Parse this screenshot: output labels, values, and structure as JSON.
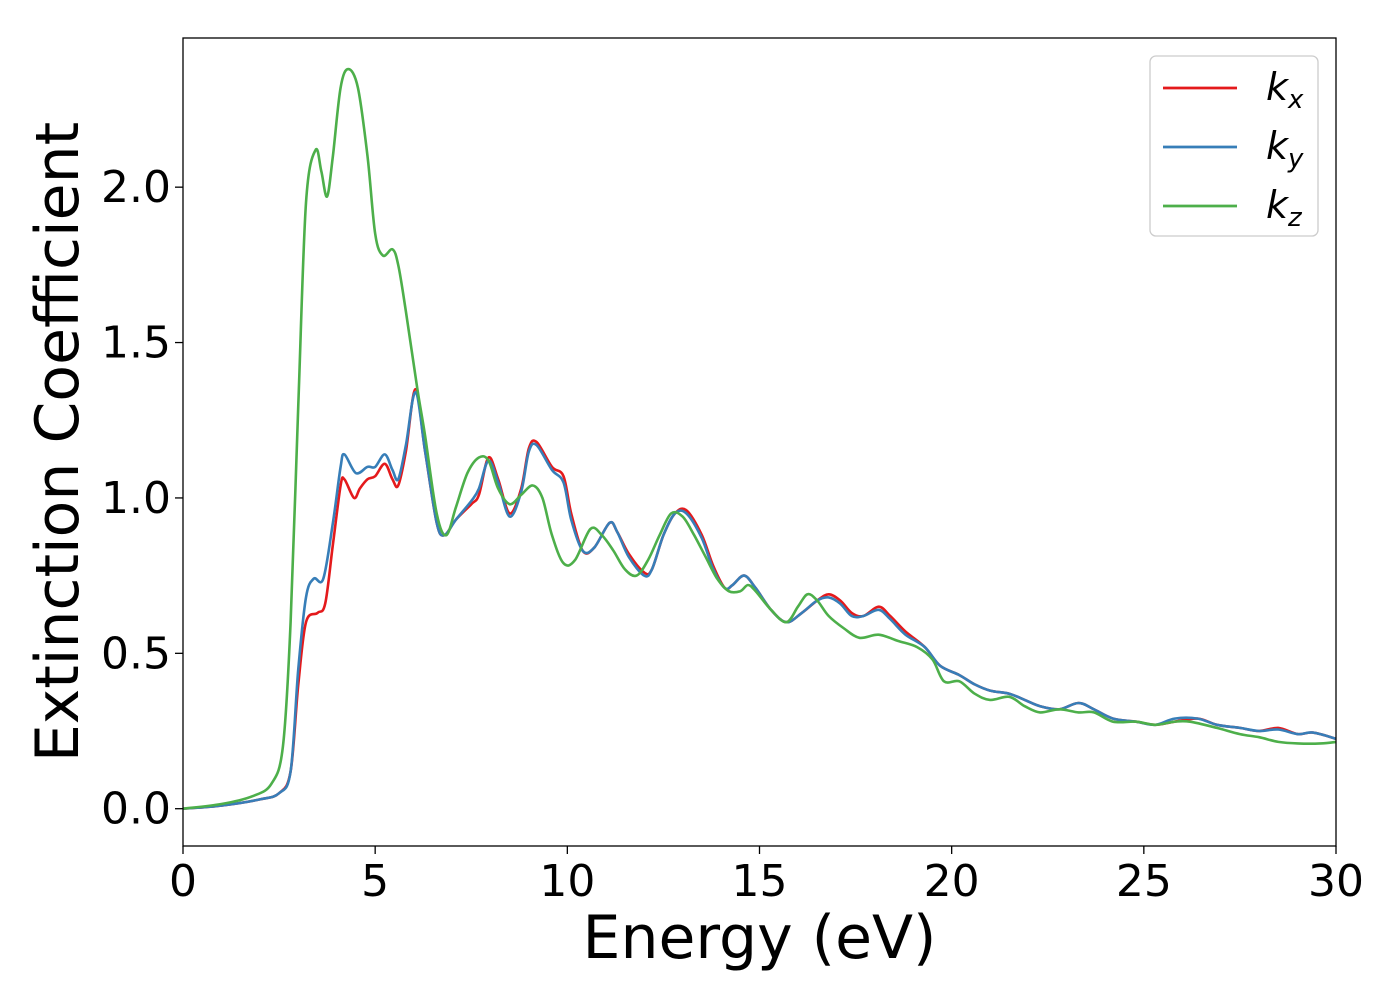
{
  "chart_data": {
    "type": "line",
    "xlabel": "Energy (eV)",
    "ylabel": "Extinction Coefficient",
    "xlim": [
      0,
      30
    ],
    "ylim": [
      -0.12,
      2.48
    ],
    "xticks": [
      0,
      5,
      10,
      15,
      20,
      25,
      30
    ],
    "yticks": [
      0.0,
      0.5,
      1.0,
      1.5,
      2.0
    ],
    "xtick_labels": [
      "0",
      "5",
      "10",
      "15",
      "20",
      "25",
      "30"
    ],
    "ytick_labels": [
      "0.0",
      "0.5",
      "1.0",
      "1.5",
      "2.0"
    ],
    "grid": false,
    "legend_position": "top-right",
    "series": [
      {
        "name": "kx",
        "legend": {
          "base": "k",
          "sub": "x"
        },
        "color": "#e41a1c",
        "points": [
          [
            0,
            0.0
          ],
          [
            1,
            0.01
          ],
          [
            2,
            0.03
          ],
          [
            2.5,
            0.05
          ],
          [
            2.8,
            0.12
          ],
          [
            3,
            0.4
          ],
          [
            3.2,
            0.6
          ],
          [
            3.5,
            0.63
          ],
          [
            3.7,
            0.66
          ],
          [
            3.9,
            0.85
          ],
          [
            4.1,
            1.04
          ],
          [
            4.2,
            1.06
          ],
          [
            4.45,
            1.0
          ],
          [
            4.6,
            1.03
          ],
          [
            4.8,
            1.06
          ],
          [
            5.0,
            1.07
          ],
          [
            5.25,
            1.11
          ],
          [
            5.45,
            1.06
          ],
          [
            5.6,
            1.04
          ],
          [
            5.8,
            1.15
          ],
          [
            6.05,
            1.35
          ],
          [
            6.3,
            1.15
          ],
          [
            6.6,
            0.92
          ],
          [
            6.8,
            0.88
          ],
          [
            7.1,
            0.93
          ],
          [
            7.5,
            0.98
          ],
          [
            7.7,
            1.01
          ],
          [
            7.95,
            1.13
          ],
          [
            8.2,
            1.06
          ],
          [
            8.5,
            0.95
          ],
          [
            8.8,
            1.03
          ],
          [
            9.0,
            1.16
          ],
          [
            9.2,
            1.18
          ],
          [
            9.6,
            1.1
          ],
          [
            9.9,
            1.07
          ],
          [
            10.1,
            0.95
          ],
          [
            10.4,
            0.83
          ],
          [
            10.7,
            0.84
          ],
          [
            11.1,
            0.92
          ],
          [
            11.3,
            0.89
          ],
          [
            11.6,
            0.82
          ],
          [
            12.0,
            0.76
          ],
          [
            12.2,
            0.77
          ],
          [
            12.5,
            0.88
          ],
          [
            12.8,
            0.95
          ],
          [
            13.1,
            0.96
          ],
          [
            13.5,
            0.88
          ],
          [
            13.8,
            0.78
          ],
          [
            14.1,
            0.71
          ],
          [
            14.3,
            0.72
          ],
          [
            14.6,
            0.75
          ],
          [
            14.9,
            0.71
          ],
          [
            15.3,
            0.64
          ],
          [
            15.7,
            0.6
          ],
          [
            16.1,
            0.63
          ],
          [
            16.5,
            0.67
          ],
          [
            16.8,
            0.69
          ],
          [
            17.1,
            0.67
          ],
          [
            17.4,
            0.63
          ],
          [
            17.7,
            0.62
          ],
          [
            18.1,
            0.65
          ],
          [
            18.4,
            0.62
          ],
          [
            18.8,
            0.57
          ],
          [
            19.3,
            0.52
          ],
          [
            19.7,
            0.46
          ],
          [
            20.2,
            0.43
          ],
          [
            20.6,
            0.4
          ],
          [
            21.0,
            0.38
          ],
          [
            21.5,
            0.37
          ],
          [
            21.9,
            0.35
          ],
          [
            22.3,
            0.33
          ],
          [
            22.8,
            0.32
          ],
          [
            23.3,
            0.34
          ],
          [
            23.7,
            0.32
          ],
          [
            24.2,
            0.29
          ],
          [
            24.8,
            0.28
          ],
          [
            25.3,
            0.27
          ],
          [
            25.8,
            0.28
          ],
          [
            26.4,
            0.29
          ],
          [
            26.9,
            0.27
          ],
          [
            27.5,
            0.26
          ],
          [
            28.0,
            0.25
          ],
          [
            28.5,
            0.26
          ],
          [
            29.0,
            0.24
          ],
          [
            29.4,
            0.245
          ],
          [
            30,
            0.225
          ]
        ]
      },
      {
        "name": "ky",
        "legend": {
          "base": "k",
          "sub": "y"
        },
        "color": "#377eb8",
        "points": [
          [
            0,
            0.0
          ],
          [
            1,
            0.01
          ],
          [
            2,
            0.03
          ],
          [
            2.5,
            0.05
          ],
          [
            2.8,
            0.12
          ],
          [
            3,
            0.45
          ],
          [
            3.2,
            0.68
          ],
          [
            3.4,
            0.74
          ],
          [
            3.65,
            0.74
          ],
          [
            3.9,
            0.92
          ],
          [
            4.1,
            1.1
          ],
          [
            4.2,
            1.14
          ],
          [
            4.5,
            1.08
          ],
          [
            4.8,
            1.1
          ],
          [
            5.0,
            1.1
          ],
          [
            5.25,
            1.14
          ],
          [
            5.45,
            1.09
          ],
          [
            5.6,
            1.06
          ],
          [
            5.8,
            1.17
          ],
          [
            6.05,
            1.34
          ],
          [
            6.3,
            1.15
          ],
          [
            6.6,
            0.92
          ],
          [
            6.8,
            0.88
          ],
          [
            7.1,
            0.93
          ],
          [
            7.5,
            0.99
          ],
          [
            7.7,
            1.03
          ],
          [
            7.95,
            1.12
          ],
          [
            8.2,
            1.05
          ],
          [
            8.5,
            0.94
          ],
          [
            8.8,
            1.02
          ],
          [
            9.0,
            1.15
          ],
          [
            9.2,
            1.17
          ],
          [
            9.6,
            1.09
          ],
          [
            9.9,
            1.05
          ],
          [
            10.1,
            0.93
          ],
          [
            10.4,
            0.83
          ],
          [
            10.7,
            0.84
          ],
          [
            11.1,
            0.92
          ],
          [
            11.3,
            0.89
          ],
          [
            11.6,
            0.81
          ],
          [
            12.0,
            0.75
          ],
          [
            12.2,
            0.77
          ],
          [
            12.5,
            0.88
          ],
          [
            12.8,
            0.95
          ],
          [
            13.1,
            0.95
          ],
          [
            13.5,
            0.87
          ],
          [
            13.8,
            0.77
          ],
          [
            14.1,
            0.71
          ],
          [
            14.3,
            0.72
          ],
          [
            14.6,
            0.75
          ],
          [
            14.9,
            0.71
          ],
          [
            15.3,
            0.64
          ],
          [
            15.7,
            0.6
          ],
          [
            16.1,
            0.63
          ],
          [
            16.5,
            0.67
          ],
          [
            16.8,
            0.68
          ],
          [
            17.1,
            0.66
          ],
          [
            17.4,
            0.62
          ],
          [
            17.7,
            0.62
          ],
          [
            18.1,
            0.64
          ],
          [
            18.4,
            0.61
          ],
          [
            18.8,
            0.56
          ],
          [
            19.3,
            0.52
          ],
          [
            19.7,
            0.46
          ],
          [
            20.2,
            0.43
          ],
          [
            20.6,
            0.4
          ],
          [
            21.0,
            0.38
          ],
          [
            21.5,
            0.37
          ],
          [
            21.9,
            0.35
          ],
          [
            22.3,
            0.33
          ],
          [
            22.8,
            0.32
          ],
          [
            23.3,
            0.34
          ],
          [
            23.7,
            0.32
          ],
          [
            24.2,
            0.29
          ],
          [
            24.8,
            0.28
          ],
          [
            25.3,
            0.27
          ],
          [
            25.8,
            0.29
          ],
          [
            26.4,
            0.29
          ],
          [
            26.9,
            0.27
          ],
          [
            27.5,
            0.26
          ],
          [
            28.0,
            0.25
          ],
          [
            28.5,
            0.255
          ],
          [
            29.0,
            0.24
          ],
          [
            29.4,
            0.245
          ],
          [
            30,
            0.225
          ]
        ]
      },
      {
        "name": "kz",
        "legend": {
          "base": "k",
          "sub": "z"
        },
        "color": "#4daf4a",
        "points": [
          [
            0,
            0.0
          ],
          [
            1,
            0.015
          ],
          [
            1.8,
            0.04
          ],
          [
            2.3,
            0.08
          ],
          [
            2.6,
            0.2
          ],
          [
            2.8,
            0.6
          ],
          [
            3.0,
            1.3
          ],
          [
            3.2,
            1.95
          ],
          [
            3.45,
            2.12
          ],
          [
            3.6,
            2.05
          ],
          [
            3.75,
            1.97
          ],
          [
            3.9,
            2.1
          ],
          [
            4.1,
            2.32
          ],
          [
            4.3,
            2.38
          ],
          [
            4.55,
            2.32
          ],
          [
            4.8,
            2.1
          ],
          [
            5.0,
            1.85
          ],
          [
            5.2,
            1.78
          ],
          [
            5.45,
            1.8
          ],
          [
            5.6,
            1.75
          ],
          [
            5.8,
            1.6
          ],
          [
            6.1,
            1.35
          ],
          [
            6.3,
            1.2
          ],
          [
            6.6,
            0.95
          ],
          [
            6.85,
            0.88
          ],
          [
            7.1,
            0.97
          ],
          [
            7.4,
            1.08
          ],
          [
            7.7,
            1.13
          ],
          [
            7.95,
            1.12
          ],
          [
            8.2,
            1.03
          ],
          [
            8.5,
            0.98
          ],
          [
            8.8,
            1.01
          ],
          [
            9.1,
            1.04
          ],
          [
            9.35,
            1.0
          ],
          [
            9.6,
            0.88
          ],
          [
            9.9,
            0.79
          ],
          [
            10.2,
            0.8
          ],
          [
            10.6,
            0.9
          ],
          [
            10.9,
            0.88
          ],
          [
            11.2,
            0.83
          ],
          [
            11.5,
            0.77
          ],
          [
            11.8,
            0.75
          ],
          [
            12.1,
            0.8
          ],
          [
            12.4,
            0.88
          ],
          [
            12.7,
            0.95
          ],
          [
            13.0,
            0.94
          ],
          [
            13.3,
            0.88
          ],
          [
            13.6,
            0.81
          ],
          [
            13.9,
            0.74
          ],
          [
            14.2,
            0.7
          ],
          [
            14.5,
            0.7
          ],
          [
            14.7,
            0.72
          ],
          [
            14.9,
            0.7
          ],
          [
            15.3,
            0.64
          ],
          [
            15.7,
            0.6
          ],
          [
            16.0,
            0.65
          ],
          [
            16.25,
            0.69
          ],
          [
            16.5,
            0.67
          ],
          [
            16.8,
            0.62
          ],
          [
            17.2,
            0.58
          ],
          [
            17.6,
            0.55
          ],
          [
            18.1,
            0.56
          ],
          [
            18.6,
            0.54
          ],
          [
            19.1,
            0.52
          ],
          [
            19.5,
            0.48
          ],
          [
            19.8,
            0.41
          ],
          [
            20.2,
            0.41
          ],
          [
            20.6,
            0.37
          ],
          [
            21.0,
            0.35
          ],
          [
            21.5,
            0.36
          ],
          [
            21.9,
            0.33
          ],
          [
            22.3,
            0.31
          ],
          [
            22.8,
            0.32
          ],
          [
            23.3,
            0.31
          ],
          [
            23.7,
            0.31
          ],
          [
            24.2,
            0.28
          ],
          [
            24.8,
            0.28
          ],
          [
            25.3,
            0.27
          ],
          [
            25.8,
            0.28
          ],
          [
            26.2,
            0.28
          ],
          [
            26.9,
            0.26
          ],
          [
            27.5,
            0.24
          ],
          [
            28.0,
            0.23
          ],
          [
            28.5,
            0.215
          ],
          [
            29.0,
            0.21
          ],
          [
            29.6,
            0.21
          ],
          [
            30,
            0.215
          ]
        ]
      }
    ]
  }
}
